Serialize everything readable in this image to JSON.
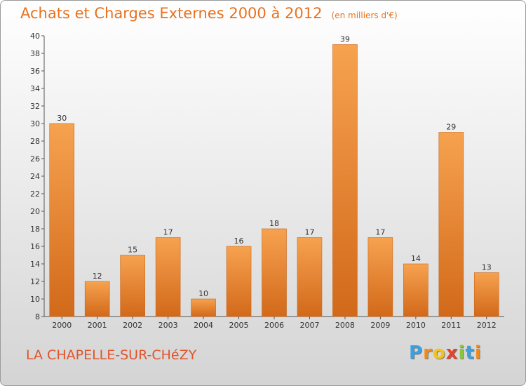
{
  "chart_data": {
    "type": "bar",
    "title": "Achats et Charges Externes 2000 à 2012",
    "subtitle": "(en milliers d'€)",
    "categories": [
      "2000",
      "2001",
      "2002",
      "2003",
      "2004",
      "2005",
      "2006",
      "2007",
      "2008",
      "2009",
      "2010",
      "2011",
      "2012"
    ],
    "values": [
      30,
      12,
      15,
      17,
      10,
      16,
      18,
      17,
      39,
      17,
      14,
      29,
      13
    ],
    "ylim": [
      8,
      40
    ],
    "yticks": [
      8,
      10,
      12,
      14,
      16,
      18,
      20,
      22,
      24,
      26,
      28,
      30,
      32,
      34,
      36,
      38,
      40
    ],
    "grid": false,
    "legend": "none",
    "bar_color_top": "#f6a24f",
    "bar_color_bottom": "#d2691a"
  },
  "footer": {
    "town": "LA CHAPELLE-SUR-CHéZY",
    "brand_letters": [
      "P",
      "r",
      "o",
      "x",
      "i",
      "t",
      "i"
    ],
    "brand_colors": [
      "#3aa0de",
      "#f08a1c",
      "#f4c21c",
      "#e2432a",
      "#8bc53f",
      "#3aa0de",
      "#f08a1c"
    ]
  }
}
